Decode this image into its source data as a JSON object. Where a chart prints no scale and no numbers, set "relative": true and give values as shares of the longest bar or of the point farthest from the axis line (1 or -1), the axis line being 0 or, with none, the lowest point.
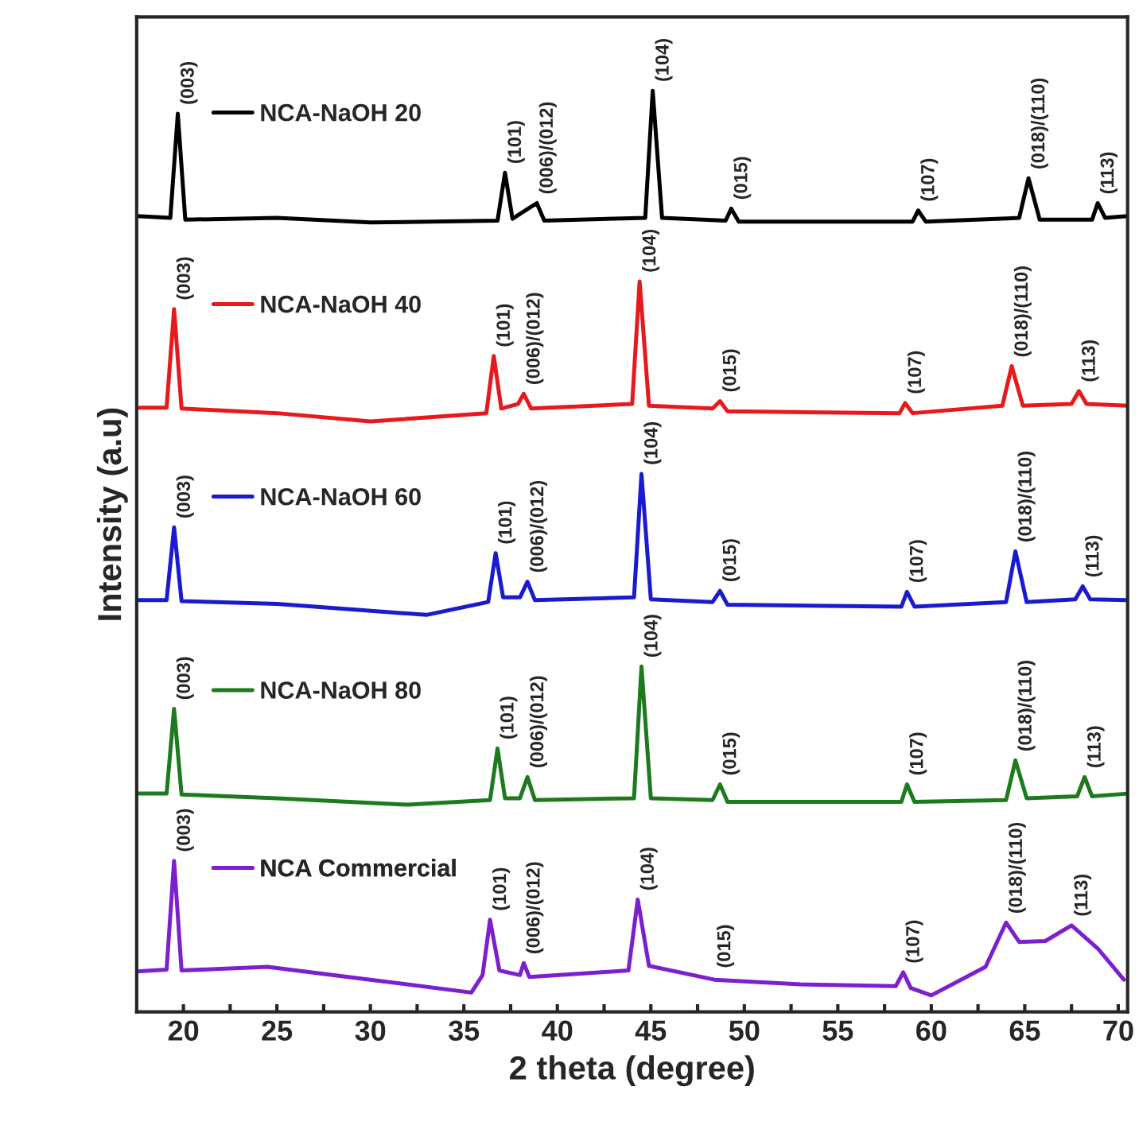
{
  "chart_data": {
    "type": "line",
    "relative": true,
    "xlabel": "2 theta (degree)",
    "ylabel": "Intensity (a.u)",
    "xlim": [
      17.5,
      70.5
    ],
    "xticks": [
      20,
      {
        "value": 22.5,
        "label": null
      },
      25,
      {
        "value": 27.5,
        "label": null
      },
      30,
      {
        "value": 32.5,
        "label": null
      },
      35,
      {
        "value": 37.5,
        "label": null
      },
      40,
      {
        "value": 42.5,
        "label": null
      },
      45,
      {
        "value": 47.5,
        "label": null
      },
      50,
      {
        "value": 52.5,
        "label": null
      },
      55,
      {
        "value": 57.5,
        "label": null
      },
      60,
      {
        "value": 62.5,
        "label": null
      },
      65,
      {
        "value": 67.5,
        "label": null
      },
      70
    ],
    "grid": false,
    "legend": "top left",
    "marker": "none",
    "line_style": "solid",
    "series": [
      {
        "name": "NCA-NaOH 20",
        "color": "#000000",
        "x": [
          17.5,
          19.3,
          19.7,
          20.1,
          25,
          30,
          36.8,
          37.2,
          37.6,
          38.9,
          39.3,
          44.7,
          45.1,
          45.6,
          49.0,
          49.3,
          49.7,
          59.0,
          59.3,
          59.7,
          64.7,
          65.2,
          65.8,
          68.6,
          68.9,
          69.3,
          70.5
        ],
        "values": [
          0.864,
          0.862,
          0.975,
          0.86,
          0.862,
          0.857,
          0.859,
          0.911,
          0.861,
          0.878,
          0.859,
          0.862,
          1.0,
          0.862,
          0.859,
          0.872,
          0.858,
          0.858,
          0.87,
          0.858,
          0.862,
          0.905,
          0.86,
          0.86,
          0.878,
          0.862,
          0.864
        ]
      },
      {
        "name": "NCA-NaOH 40",
        "color": "#e8191a",
        "x": [
          17.5,
          19.1,
          19.5,
          19.9,
          25,
          30,
          36.2,
          36.6,
          37.0,
          37.9,
          38.2,
          38.6,
          44.0,
          44.4,
          44.9,
          48.3,
          48.7,
          49.1,
          58.3,
          58.6,
          59.0,
          63.8,
          64.3,
          64.9,
          67.5,
          67.9,
          68.3,
          70.5
        ],
        "values": [
          0.656,
          0.656,
          0.763,
          0.655,
          0.65,
          0.641,
          0.65,
          0.712,
          0.655,
          0.66,
          0.671,
          0.655,
          0.66,
          0.793,
          0.658,
          0.655,
          0.663,
          0.652,
          0.65,
          0.661,
          0.65,
          0.658,
          0.701,
          0.658,
          0.66,
          0.674,
          0.66,
          0.658
        ]
      },
      {
        "name": "NCA-NaOH 60",
        "color": "#1a1ad0",
        "x": [
          17.5,
          19.1,
          19.5,
          19.9,
          25,
          33,
          36.3,
          36.7,
          37.1,
          38.0,
          38.4,
          38.8,
          44.1,
          44.5,
          45.0,
          48.3,
          48.7,
          49.1,
          58.4,
          58.7,
          59.1,
          64.0,
          64.5,
          65.1,
          67.7,
          68.1,
          68.5,
          70.5
        ],
        "values": [
          0.447,
          0.447,
          0.526,
          0.446,
          0.443,
          0.431,
          0.445,
          0.498,
          0.45,
          0.45,
          0.467,
          0.447,
          0.45,
          0.584,
          0.448,
          0.445,
          0.457,
          0.442,
          0.44,
          0.456,
          0.44,
          0.445,
          0.5,
          0.445,
          0.448,
          0.462,
          0.448,
          0.447
        ]
      },
      {
        "name": "NCA-NaOH 80",
        "color": "#1e7a1e",
        "x": [
          17.5,
          19.1,
          19.5,
          19.9,
          25,
          32,
          36.4,
          36.8,
          37.2,
          38.0,
          38.4,
          38.8,
          44.1,
          44.5,
          45.0,
          48.3,
          48.7,
          49.1,
          58.4,
          58.7,
          59.1,
          64.0,
          64.5,
          65.1,
          67.8,
          68.2,
          68.6,
          70.5
        ],
        "values": [
          0.237,
          0.237,
          0.329,
          0.236,
          0.232,
          0.225,
          0.23,
          0.286,
          0.232,
          0.232,
          0.255,
          0.23,
          0.232,
          0.375,
          0.232,
          0.23,
          0.247,
          0.228,
          0.228,
          0.247,
          0.228,
          0.23,
          0.273,
          0.232,
          0.234,
          0.255,
          0.234,
          0.237
        ]
      },
      {
        "name": "NCA Commercial",
        "color": "#7b1fd0",
        "x": [
          17.5,
          19.1,
          19.5,
          19.9,
          24.5,
          30,
          35.4,
          36.0,
          36.4,
          36.9,
          38.0,
          38.2,
          38.5,
          43.8,
          44.3,
          44.9,
          48.4,
          53,
          58.1,
          58.5,
          58.9,
          60.0,
          62.9,
          64.0,
          64.7,
          66.1,
          67.5,
          68.9,
          70.3
        ],
        "values": [
          0.044,
          0.046,
          0.164,
          0.045,
          0.049,
          0.035,
          0.021,
          0.04,
          0.1,
          0.045,
          0.04,
          0.053,
          0.038,
          0.045,
          0.122,
          0.05,
          0.035,
          0.03,
          0.028,
          0.043,
          0.026,
          0.018,
          0.049,
          0.097,
          0.076,
          0.077,
          0.094,
          0.069,
          0.035
        ]
      }
    ],
    "annotations": [
      {
        "text": "(003)",
        "x": 19.7,
        "y": 0.975
      },
      {
        "text": "(101)",
        "x": 37.2,
        "y": 0.911
      },
      {
        "text": "(006)/(012)",
        "x": 38.9,
        "y": 0.878
      },
      {
        "text": "(104)",
        "x": 45.1,
        "y": 1.0
      },
      {
        "text": "(015)",
        "x": 49.3,
        "y": 0.872
      },
      {
        "text": "(107)",
        "x": 59.3,
        "y": 0.87
      },
      {
        "text": "(018)/(110)",
        "x": 65.2,
        "y": 0.905
      },
      {
        "text": "(113)",
        "x": 68.9,
        "y": 0.878
      },
      {
        "text": "(003)",
        "x": 19.5,
        "y": 0.763
      },
      {
        "text": "(101)",
        "x": 36.6,
        "y": 0.712
      },
      {
        "text": "(006)/(012)",
        "x": 38.2,
        "y": 0.671
      },
      {
        "text": "(104)",
        "x": 44.4,
        "y": 0.793
      },
      {
        "text": "(015)",
        "x": 48.7,
        "y": 0.663
      },
      {
        "text": "(107)",
        "x": 58.6,
        "y": 0.661
      },
      {
        "text": "(018)/(110)",
        "x": 64.3,
        "y": 0.701
      },
      {
        "text": "(113)",
        "x": 67.9,
        "y": 0.674
      },
      {
        "text": "(003)",
        "x": 19.5,
        "y": 0.526
      },
      {
        "text": "(101)",
        "x": 36.7,
        "y": 0.498
      },
      {
        "text": "(006)/(012)",
        "x": 38.4,
        "y": 0.467
      },
      {
        "text": "(104)",
        "x": 44.5,
        "y": 0.584
      },
      {
        "text": "(015)",
        "x": 48.7,
        "y": 0.457
      },
      {
        "text": "(107)",
        "x": 58.7,
        "y": 0.456
      },
      {
        "text": "(018)/(110)",
        "x": 64.5,
        "y": 0.5
      },
      {
        "text": "(113)",
        "x": 68.1,
        "y": 0.462
      },
      {
        "text": "(003)",
        "x": 19.5,
        "y": 0.329
      },
      {
        "text": "(101)",
        "x": 36.8,
        "y": 0.286
      },
      {
        "text": "(006)/(012)",
        "x": 38.4,
        "y": 0.255
      },
      {
        "text": "(104)",
        "x": 44.5,
        "y": 0.375
      },
      {
        "text": "(015)",
        "x": 48.7,
        "y": 0.247
      },
      {
        "text": "(107)",
        "x": 58.7,
        "y": 0.247
      },
      {
        "text": "(018)/(110)",
        "x": 64.5,
        "y": 0.273
      },
      {
        "text": "(113)",
        "x": 68.2,
        "y": 0.255
      },
      {
        "text": "(003)",
        "x": 19.5,
        "y": 0.164
      },
      {
        "text": "(101)",
        "x": 36.4,
        "y": 0.1
      },
      {
        "text": "(006)/(012)",
        "x": 38.2,
        "y": 0.053
      },
      {
        "text": "(104)",
        "x": 44.3,
        "y": 0.122
      },
      {
        "text": "(015)",
        "x": 48.4,
        "y": 0.038
      },
      {
        "text": "(107)",
        "x": 58.5,
        "y": 0.043
      },
      {
        "text": "(018)/(110)",
        "x": 64.0,
        "y": 0.097
      },
      {
        "text": "(113)",
        "x": 67.5,
        "y": 0.094
      }
    ]
  }
}
